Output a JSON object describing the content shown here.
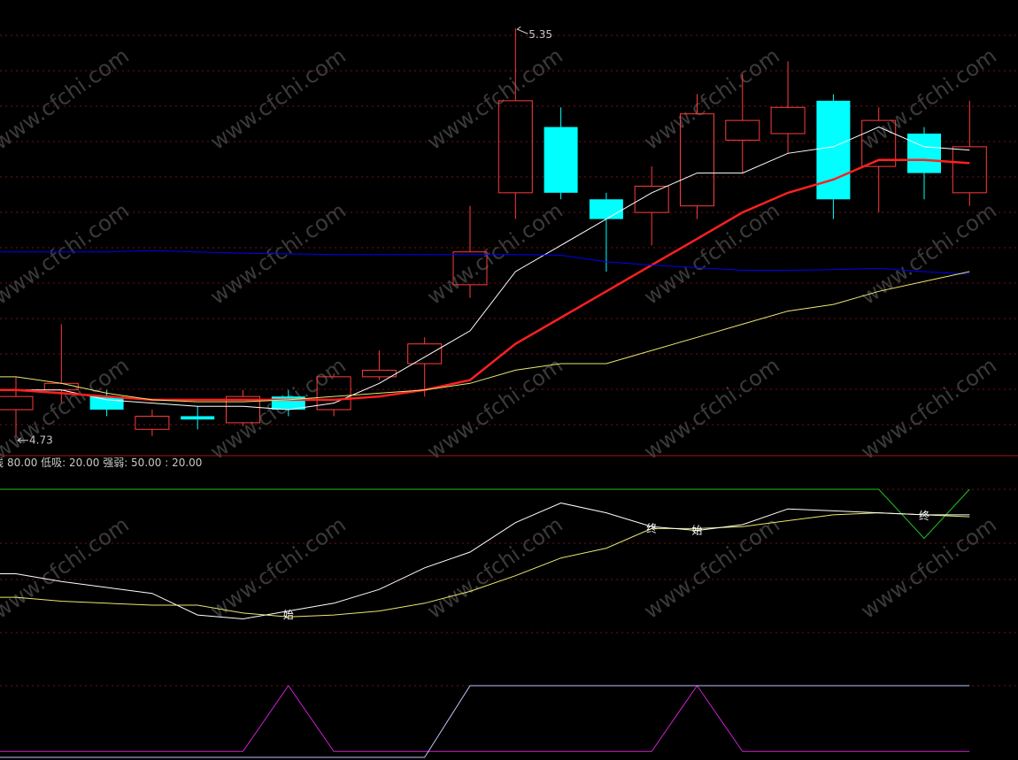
{
  "chart_data": [
    {
      "type": "candlestick",
      "high_marker": "5.35",
      "low_marker": "4.73",
      "candles": [
        {
          "o": 4.79,
          "c": 4.77,
          "h": 4.82,
          "l": 4.73,
          "dir": "up"
        },
        {
          "o": 4.81,
          "c": 4.8,
          "h": 4.9,
          "l": 4.78,
          "dir": "up"
        },
        {
          "o": 4.79,
          "c": 4.77,
          "h": 4.8,
          "l": 4.76,
          "dir": "down"
        },
        {
          "o": 4.74,
          "c": 4.76,
          "h": 4.77,
          "l": 4.73,
          "dir": "up"
        },
        {
          "o": 4.76,
          "c": 4.755,
          "h": 4.775,
          "l": 4.74,
          "dir": "down"
        },
        {
          "o": 4.75,
          "c": 4.79,
          "h": 4.8,
          "l": 4.745,
          "dir": "up"
        },
        {
          "o": 4.79,
          "c": 4.77,
          "h": 4.8,
          "l": 4.76,
          "dir": "down"
        },
        {
          "o": 4.77,
          "c": 4.82,
          "h": 4.825,
          "l": 4.76,
          "dir": "up"
        },
        {
          "o": 4.82,
          "c": 4.83,
          "h": 4.86,
          "l": 4.815,
          "dir": "up"
        },
        {
          "o": 4.84,
          "c": 4.87,
          "h": 4.88,
          "l": 4.79,
          "dir": "up"
        },
        {
          "o": 4.96,
          "c": 5.01,
          "h": 5.08,
          "l": 4.94,
          "dir": "up"
        },
        {
          "o": 5.1,
          "c": 5.24,
          "h": 5.35,
          "l": 5.06,
          "dir": "up"
        },
        {
          "o": 5.2,
          "c": 5.1,
          "h": 5.23,
          "l": 5.09,
          "dir": "down"
        },
        {
          "o": 5.09,
          "c": 5.06,
          "h": 5.1,
          "l": 4.98,
          "dir": "down"
        },
        {
          "o": 5.07,
          "c": 5.11,
          "h": 5.14,
          "l": 5.02,
          "dir": "up"
        },
        {
          "o": 5.08,
          "c": 5.22,
          "h": 5.25,
          "l": 5.06,
          "dir": "up"
        },
        {
          "o": 5.18,
          "c": 5.21,
          "h": 5.28,
          "l": 5.13,
          "dir": "up"
        },
        {
          "o": 5.19,
          "c": 5.23,
          "h": 5.3,
          "l": 5.16,
          "dir": "up"
        },
        {
          "o": 5.24,
          "c": 5.09,
          "h": 5.25,
          "l": 5.06,
          "dir": "down"
        },
        {
          "o": 5.14,
          "c": 5.21,
          "h": 5.23,
          "l": 5.07,
          "dir": "up"
        },
        {
          "o": 5.19,
          "c": 5.13,
          "h": 5.2,
          "l": 5.09,
          "dir": "down"
        },
        {
          "o": 5.1,
          "c": 5.17,
          "h": 5.24,
          "l": 5.08,
          "dir": "up"
        }
      ],
      "ma_lines": [
        {
          "color": "#ffffff",
          "width": 1,
          "values": [
            4.8,
            4.8,
            4.785,
            4.78,
            4.775,
            4.775,
            4.77,
            4.78,
            4.81,
            4.85,
            4.89,
            4.98,
            5.02,
            5.06,
            5.1,
            5.13,
            5.13,
            5.16,
            5.17,
            5.2,
            5.17,
            5.165
          ]
        },
        {
          "color": "#ff2020",
          "width": 2.5,
          "values": [
            4.8,
            4.795,
            4.79,
            4.785,
            4.785,
            4.785,
            4.785,
            4.785,
            4.79,
            4.8,
            4.815,
            4.87,
            4.91,
            4.95,
            4.99,
            5.03,
            5.07,
            5.1,
            5.12,
            5.15,
            5.15,
            5.145
          ]
        },
        {
          "color": "#0000ff",
          "width": 1,
          "values": [
            5.01,
            5.01,
            5.01,
            5.012,
            5.01,
            5.008,
            5.007,
            5.006,
            5.006,
            5.006,
            5.006,
            5.006,
            5.005,
            4.995,
            4.99,
            4.986,
            4.982,
            4.982,
            4.983,
            4.985,
            4.98,
            4.976
          ]
        },
        {
          "color": "#e8e870",
          "width": 1,
          "values": [
            4.82,
            4.81,
            4.795,
            4.785,
            4.782,
            4.782,
            4.785,
            4.79,
            4.795,
            4.8,
            4.81,
            4.83,
            4.84,
            4.84,
            4.86,
            4.88,
            4.9,
            4.92,
            4.93,
            4.95,
            4.965,
            4.98
          ]
        }
      ]
    },
    {
      "type": "line",
      "header": "80.00  低吸: 20.00  强弱: 50.00 : 20.00",
      "header_prefix": "线",
      "ylim": [
        0,
        100
      ],
      "white_line": [
        57,
        53,
        50,
        47,
        36,
        34,
        38,
        42,
        49,
        60,
        68,
        83,
        93,
        88,
        81,
        79,
        82,
        90,
        89,
        88,
        87,
        87
      ],
      "yellow_line": [
        45,
        43,
        42,
        41,
        41,
        37,
        35,
        36,
        38,
        42,
        48,
        56,
        65,
        70,
        80,
        80,
        81,
        84,
        87,
        88,
        87,
        86
      ],
      "green_line": [
        100,
        100,
        100,
        100,
        100,
        100,
        100,
        100,
        100,
        100,
        100,
        100,
        100,
        100,
        100,
        100,
        100,
        100,
        100,
        100,
        75,
        100
      ],
      "magenta_line": [
        1,
        1,
        1,
        1,
        1,
        1,
        12,
        1,
        1,
        1,
        1,
        1,
        1,
        1,
        1,
        12,
        1,
        1,
        1,
        1,
        1,
        1
      ],
      "lavender_line": [
        0,
        0,
        0,
        0,
        0,
        0,
        0,
        0,
        0,
        0,
        12,
        12,
        12,
        12,
        12,
        12,
        12,
        12,
        12,
        12,
        12,
        12
      ],
      "markers": [
        {
          "text": "始",
          "i": 6
        },
        {
          "text": "终",
          "i": 14
        },
        {
          "text": "始",
          "i": 15
        },
        {
          "text": "终",
          "i": 20
        }
      ]
    }
  ],
  "watermark": "www.cfchi.com",
  "colors": {
    "up": "#ff3c3c",
    "down": "#00ffff",
    "grid": "#7a1010",
    "divider": "#a01818",
    "green": "#20c020",
    "magenta": "#d020d0",
    "lavender": "#c0c0ff",
    "label": "#c8c8c8"
  }
}
